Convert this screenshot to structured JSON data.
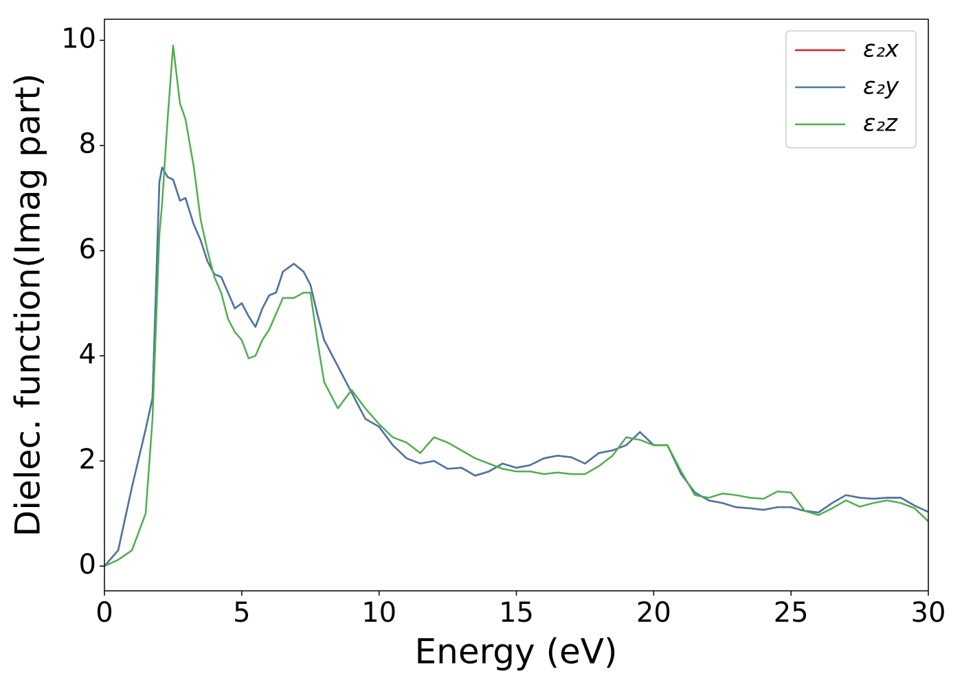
{
  "chart_data": {
    "type": "line",
    "xlabel": "Energy (eV)",
    "ylabel": "Dielec. function(Imag part)",
    "x": [
      0,
      0.5,
      1,
      1.5,
      1.75,
      2,
      2.1,
      2.3,
      2.5,
      2.75,
      2.95,
      3.25,
      3.5,
      3.75,
      4,
      4.25,
      4.5,
      4.75,
      5,
      5.25,
      5.5,
      5.75,
      6,
      6.25,
      6.5,
      6.9,
      7.25,
      7.5,
      7.75,
      8,
      8.5,
      9,
      9.5,
      10,
      10.5,
      11,
      11.5,
      12,
      12.5,
      13,
      13.5,
      14,
      14.5,
      15,
      15.5,
      16,
      16.5,
      17,
      17.5,
      18,
      18.5,
      19,
      19.5,
      20,
      20.5,
      21,
      21.5,
      22,
      22.5,
      23,
      23.5,
      24,
      24.5,
      25,
      25.5,
      26,
      26.5,
      27,
      27.5,
      28,
      28.5,
      29,
      29.5,
      30
    ],
    "series": [
      {
        "name": "ε₂x",
        "color": "#e41a1c",
        "values": [
          0,
          0.3,
          1.5,
          2.6,
          3.2,
          7.3,
          7.58,
          7.4,
          7.35,
          6.95,
          7.0,
          6.5,
          6.2,
          5.8,
          5.55,
          5.5,
          5.2,
          4.9,
          5.0,
          4.75,
          4.55,
          4.9,
          5.15,
          5.2,
          5.6,
          5.75,
          5.6,
          5.35,
          4.8,
          4.3,
          3.8,
          3.3,
          2.8,
          2.65,
          2.3,
          2.05,
          1.95,
          2.0,
          1.85,
          1.87,
          1.72,
          1.8,
          1.95,
          1.87,
          1.92,
          2.05,
          2.1,
          2.07,
          1.95,
          2.15,
          2.2,
          2.3,
          2.55,
          2.3,
          2.3,
          1.75,
          1.4,
          1.25,
          1.2,
          1.12,
          1.1,
          1.07,
          1.12,
          1.12,
          1.05,
          1.02,
          1.2,
          1.35,
          1.3,
          1.28,
          1.3,
          1.3,
          1.15,
          1.03
        ]
      },
      {
        "name": "ε₂y",
        "color": "#4477aa",
        "values": [
          0,
          0.3,
          1.5,
          2.6,
          3.2,
          7.3,
          7.58,
          7.4,
          7.35,
          6.95,
          7.0,
          6.5,
          6.2,
          5.8,
          5.55,
          5.5,
          5.2,
          4.9,
          5.0,
          4.75,
          4.55,
          4.9,
          5.15,
          5.2,
          5.6,
          5.75,
          5.6,
          5.35,
          4.8,
          4.3,
          3.8,
          3.3,
          2.8,
          2.65,
          2.3,
          2.05,
          1.95,
          2.0,
          1.85,
          1.87,
          1.72,
          1.8,
          1.95,
          1.87,
          1.92,
          2.05,
          2.1,
          2.07,
          1.95,
          2.15,
          2.2,
          2.3,
          2.55,
          2.3,
          2.3,
          1.75,
          1.4,
          1.25,
          1.2,
          1.12,
          1.1,
          1.07,
          1.12,
          1.12,
          1.05,
          1.02,
          1.2,
          1.35,
          1.3,
          1.28,
          1.3,
          1.3,
          1.15,
          1.03
        ]
      },
      {
        "name": "ε₂z",
        "color": "#4daf4a",
        "values": [
          0,
          0.12,
          0.3,
          1.0,
          2.8,
          6.3,
          6.9,
          8.5,
          9.9,
          8.8,
          8.5,
          7.6,
          6.6,
          6.0,
          5.5,
          5.2,
          4.7,
          4.45,
          4.3,
          3.95,
          4.0,
          4.3,
          4.5,
          4.8,
          5.1,
          5.1,
          5.2,
          5.2,
          4.3,
          3.5,
          3.0,
          3.35,
          3.0,
          2.7,
          2.45,
          2.35,
          2.15,
          2.45,
          2.35,
          2.2,
          2.05,
          1.95,
          1.85,
          1.8,
          1.8,
          1.75,
          1.78,
          1.75,
          1.75,
          1.9,
          2.1,
          2.45,
          2.4,
          2.3,
          2.3,
          1.8,
          1.35,
          1.3,
          1.38,
          1.35,
          1.3,
          1.28,
          1.42,
          1.4,
          1.05,
          0.97,
          1.1,
          1.25,
          1.13,
          1.2,
          1.25,
          1.2,
          1.1,
          0.85
        ]
      }
    ],
    "xlim": [
      0,
      30
    ],
    "xticks": [
      0,
      5,
      10,
      15,
      20,
      25,
      30
    ],
    "ylim": [
      -0.47,
      10.4
    ],
    "yticks": [
      0,
      2,
      4,
      6,
      8,
      10
    ],
    "grid": false,
    "legend": "upper right"
  }
}
